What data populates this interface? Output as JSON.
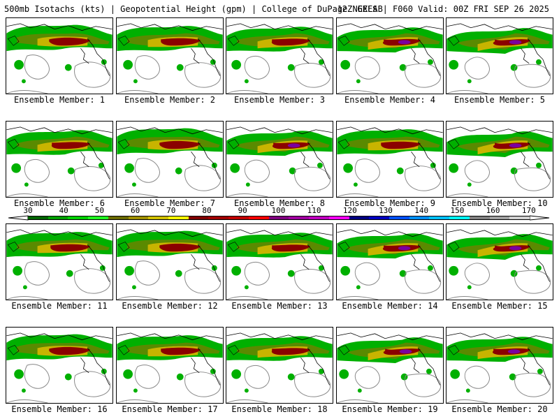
{
  "header": {
    "left": "500mb Isotachs (kts) | Geopotential Height (gpm) | College of DuPage NEXLAB",
    "right": "12Z GEFS | F060 Valid: 00Z FRI SEP 26 2025"
  },
  "members": [
    {
      "label": "Ensemble Member: 1",
      "variant": 0
    },
    {
      "label": "Ensemble Member: 2",
      "variant": 1
    },
    {
      "label": "Ensemble Member: 3",
      "variant": 2
    },
    {
      "label": "Ensemble Member: 4",
      "variant": 3
    },
    {
      "label": "Ensemble Member: 5",
      "variant": 4
    },
    {
      "label": "Ensemble Member: 6",
      "variant": 2
    },
    {
      "label": "Ensemble Member: 7",
      "variant": 0
    },
    {
      "label": "Ensemble Member: 8",
      "variant": 3
    },
    {
      "label": "Ensemble Member: 9",
      "variant": 1
    },
    {
      "label": "Ensemble Member: 10",
      "variant": 4
    },
    {
      "label": "Ensemble Member: 11",
      "variant": 1
    },
    {
      "label": "Ensemble Member: 12",
      "variant": 0
    },
    {
      "label": "Ensemble Member: 13",
      "variant": 2
    },
    {
      "label": "Ensemble Member: 14",
      "variant": 3
    },
    {
      "label": "Ensemble Member: 15",
      "variant": 4
    },
    {
      "label": "Ensemble Member: 16",
      "variant": 0
    },
    {
      "label": "Ensemble Member: 17",
      "variant": 1
    },
    {
      "label": "Ensemble Member: 18",
      "variant": 2
    },
    {
      "label": "Ensemble Member: 19",
      "variant": 4
    },
    {
      "label": "Ensemble Member: 20",
      "variant": 3
    }
  ],
  "colorbar": {
    "labels": [
      "30",
      "40",
      "50",
      "60",
      "70",
      "80",
      "90",
      "100",
      "110",
      "120",
      "130",
      "140",
      "150",
      "160",
      "170"
    ],
    "colors": [
      "#006400",
      "#00a000",
      "#00d000",
      "#20ff20",
      "#6b6b00",
      "#a09000",
      "#d0c000",
      "#ffff00",
      "#800000",
      "#a00000",
      "#c00000",
      "#ff0000",
      "#800080",
      "#a000a0",
      "#c000c0",
      "#ff00ff",
      "#000080",
      "#0000c0",
      "#0050ff",
      "#0090ff",
      "#00c0ff",
      "#00ffff",
      "#808080",
      "#a0a0a0",
      "#d0d0d0"
    ]
  },
  "colors": {
    "jet_outer": "#00b000",
    "jet_inner": "#5a8a00",
    "jet_mid": "#c8b400",
    "jet_core": "#8b0000",
    "jet_max": "#7a00a0",
    "height_contour": "#888888",
    "coastline": "#000000"
  }
}
